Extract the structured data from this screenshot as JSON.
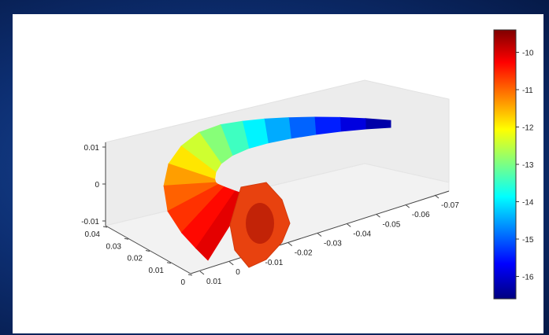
{
  "chart_data": {
    "type": "surface3d",
    "x_ticks": [
      "0.01",
      "0",
      "-0.01",
      "-0.02",
      "-0.03",
      "-0.04",
      "-0.05",
      "-0.06",
      "-0.07"
    ],
    "y_ticks": [
      "0.04",
      "0.03",
      "0.02",
      "0.01",
      "0"
    ],
    "z_ticks": [
      "0.01",
      "0",
      "-0.01"
    ],
    "xlim": [
      0.01,
      -0.075
    ],
    "ylim": [
      0,
      0.04
    ],
    "zlim": [
      -0.01,
      0.01
    ],
    "colorbar": {
      "ticks": [
        "-10",
        "-11",
        "-12",
        "-13",
        "-14",
        "-15",
        "-16"
      ],
      "tick_values": [
        -10,
        -11,
        -12,
        -13,
        -14,
        -15,
        -16
      ],
      "range": [
        -16.6,
        -9.4
      ],
      "colormap": "jet"
    },
    "surface": {
      "description_values": "Curved horn-shaped surface; color value rises from about -16.5 at the thin tip (x ≈ -0.07) to about -10 at the thick base (x ≈ 0.005).",
      "path_x": [
        -0.07,
        -0.062,
        -0.054,
        -0.046,
        -0.038,
        -0.03,
        -0.022,
        -0.014,
        -0.007,
        -0.001,
        0.003,
        0.005
      ],
      "color_value": [
        -16.5,
        -16.0,
        -15.4,
        -14.7,
        -14.0,
        -13.3,
        -12.6,
        -11.9,
        -11.2,
        -10.7,
        -10.3,
        -10.0
      ]
    },
    "colors": {
      "background": "#0d2f73",
      "panel": "#ffffff",
      "box_face": "#ececec"
    }
  }
}
